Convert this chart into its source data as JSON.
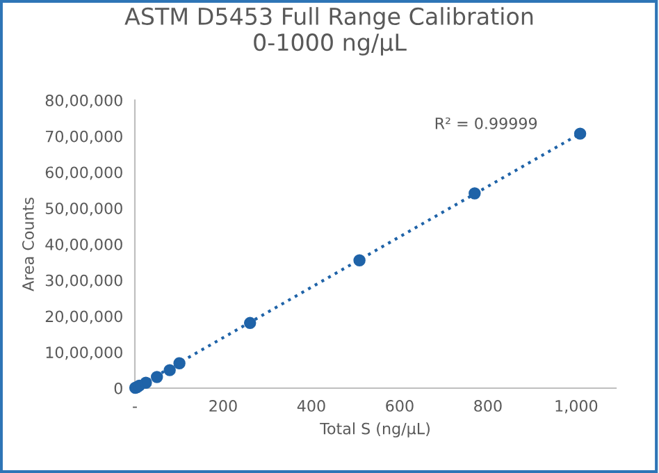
{
  "chart_data": {
    "type": "scatter",
    "title": "ASTM D5453 Full Range Calibration\n0-1000 ng/µL",
    "xlabel": "Total S (ng/µL)",
    "ylabel": "Area Counts",
    "series": [
      {
        "color": "#1f63a8",
        "marker": "circle",
        "x": [
          1,
          5,
          10,
          25,
          50,
          79,
          101,
          261,
          509,
          770,
          1009
        ],
        "values": [
          10000,
          30000,
          70000,
          150000,
          310000,
          500000,
          690000,
          1810000,
          3550000,
          5410000,
          7070000
        ]
      },
      {
        "type": "line",
        "color": "#1f63a8",
        "line_style": "dotted",
        "x": [
          0,
          1009
        ],
        "values": [
          0,
          7070000
        ]
      }
    ],
    "xlim": [
      0,
      1090
    ],
    "ylim": [
      0,
      8000000
    ],
    "xticks": [
      {
        "value": 0,
        "label": "-"
      },
      200,
      400,
      600,
      800,
      {
        "value": 1000,
        "label": "1,000"
      }
    ],
    "yticks": [
      0,
      {
        "value": 1000000,
        "label": "10,00,000"
      },
      {
        "value": 2000000,
        "label": "20,00,000"
      },
      {
        "value": 3000000,
        "label": "30,00,000"
      },
      {
        "value": 4000000,
        "label": "40,00,000"
      },
      {
        "value": 5000000,
        "label": "50,00,000"
      },
      {
        "value": 6000000,
        "label": "60,00,000"
      },
      {
        "value": 7000000,
        "label": "70,00,000"
      },
      {
        "value": 8000000,
        "label": "80,00,000"
      }
    ],
    "annotations": [
      "R² = 0.99999"
    ],
    "grid": false,
    "legend": false
  }
}
